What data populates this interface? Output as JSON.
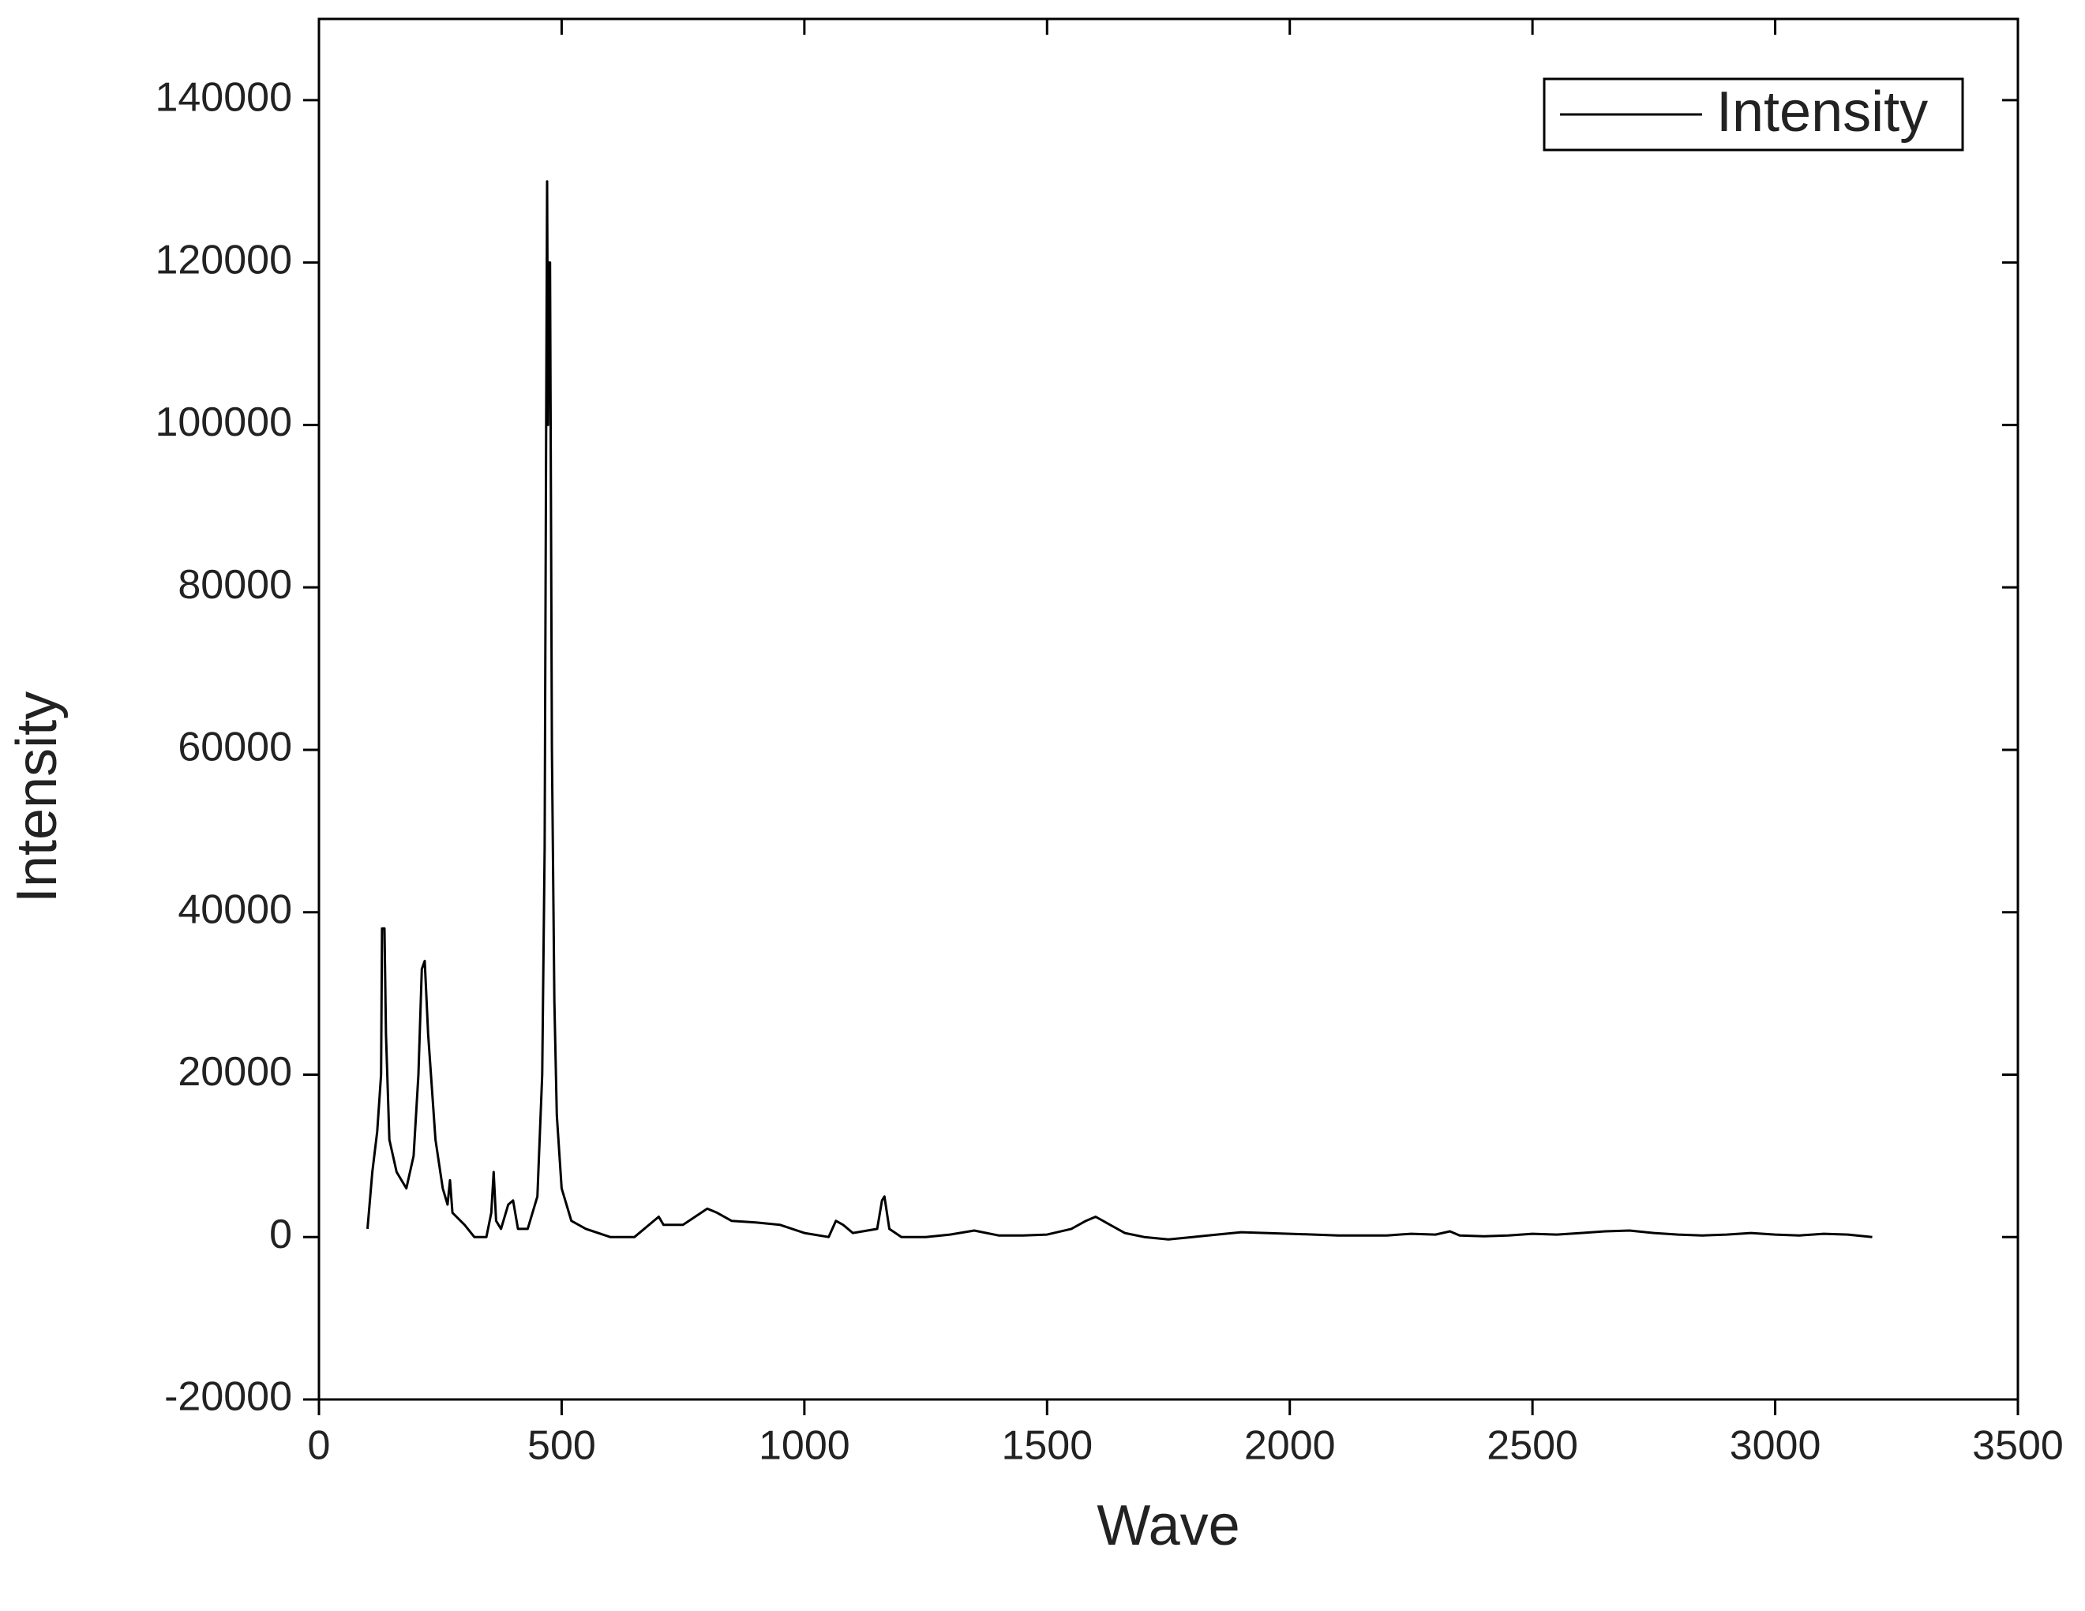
{
  "chart_data": {
    "type": "line",
    "xlabel": "Wave",
    "ylabel": "Intensity",
    "x": [
      100,
      110,
      120,
      128,
      130,
      135,
      138,
      145,
      160,
      180,
      195,
      205,
      212,
      218,
      225,
      240,
      255,
      265,
      270,
      275,
      300,
      320,
      345,
      355,
      360,
      365,
      375,
      390,
      400,
      410,
      430,
      450,
      460,
      465,
      468,
      470,
      472,
      474,
      476,
      480,
      485,
      490,
      500,
      520,
      550,
      600,
      650,
      700,
      710,
      750,
      800,
      820,
      850,
      900,
      950,
      1000,
      1050,
      1065,
      1080,
      1100,
      1150,
      1160,
      1165,
      1175,
      1200,
      1250,
      1300,
      1350,
      1400,
      1450,
      1500,
      1550,
      1580,
      1600,
      1630,
      1660,
      1700,
      1750,
      1800,
      1850,
      1900,
      1950,
      2000,
      2050,
      2100,
      2200,
      2250,
      2300,
      2330,
      2350,
      2400,
      2450,
      2500,
      2550,
      2600,
      2650,
      2700,
      2750,
      2800,
      2850,
      2900,
      2950,
      3000,
      3050,
      3100,
      3150,
      3200
    ],
    "series": [
      {
        "name": "Intensity",
        "color": "#000000",
        "values": [
          1000,
          8000,
          13000,
          20000,
          38000,
          38000,
          25000,
          12000,
          8000,
          6000,
          10000,
          20000,
          33000,
          34000,
          25000,
          12000,
          6000,
          4000,
          7000,
          3000,
          1500,
          0,
          0,
          3000,
          8000,
          2000,
          1000,
          4000,
          4500,
          1000,
          1000,
          5000,
          20000,
          48000,
          100000,
          130000,
          100000,
          120000,
          120000,
          60000,
          29000,
          15000,
          6000,
          2000,
          1000,
          0,
          0,
          2500,
          1500,
          1500,
          3500,
          3000,
          2000,
          1800,
          1500,
          500,
          0,
          2000,
          1500,
          500,
          1000,
          4500,
          5000,
          1000,
          0,
          0,
          300,
          800,
          200,
          200,
          300,
          1000,
          2000,
          2500,
          1500,
          500,
          0,
          -300,
          0,
          300,
          600,
          500,
          400,
          300,
          200,
          200,
          400,
          300,
          700,
          200,
          100,
          200,
          400,
          300,
          500,
          700,
          800,
          500,
          300,
          200,
          300,
          500,
          300,
          200,
          400,
          300,
          0
        ]
      }
    ],
    "xlim": [
      0,
      3500
    ],
    "ylim": [
      -20000,
      150000
    ],
    "xticks": [
      0,
      500,
      1000,
      1500,
      2000,
      2500,
      3000,
      3500
    ],
    "yticks": [
      -20000,
      0,
      20000,
      40000,
      60000,
      80000,
      100000,
      120000,
      140000
    ],
    "legend": "upper right"
  }
}
